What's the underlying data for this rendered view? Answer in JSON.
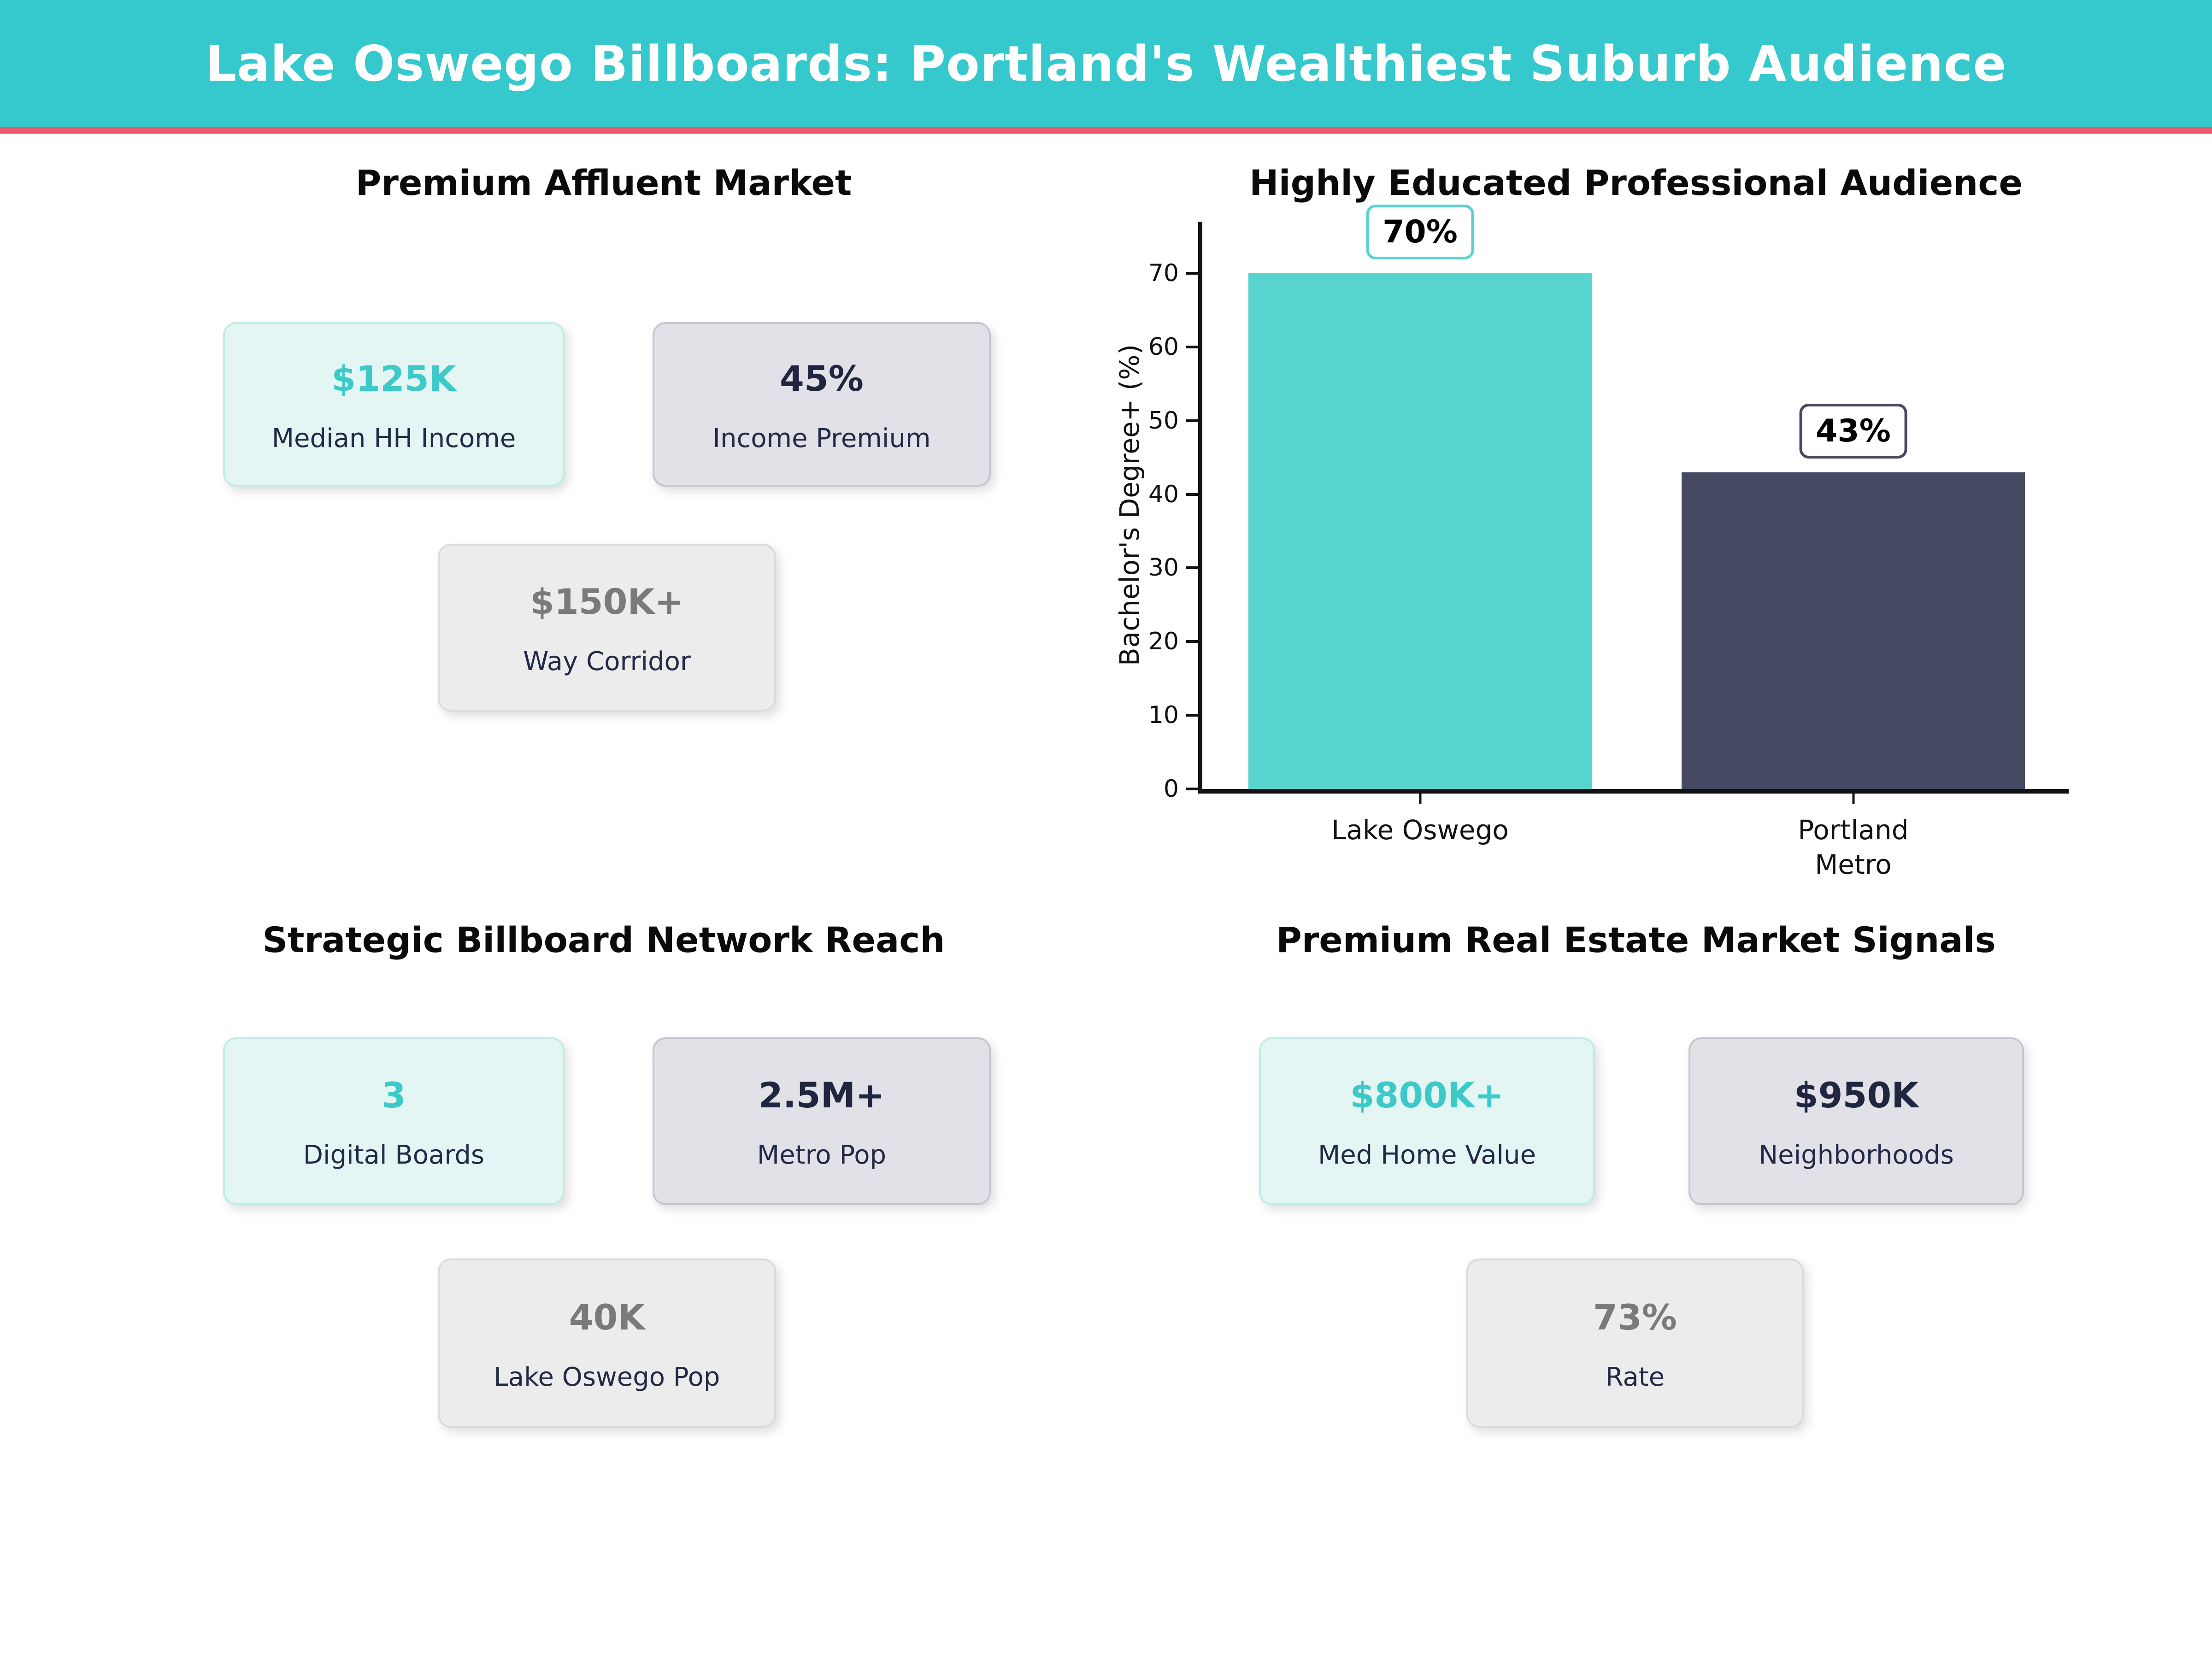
{
  "header": {
    "title": "Lake Oswego Billboards: Portland's Wealthiest Suburb Audience"
  },
  "colors": {
    "header_bg": "#35C8CD",
    "divider_pink": "#E8596E",
    "teal_accent": "#3EC9C9",
    "navy": "#20263F",
    "gray": "#7A7A7A",
    "bar_teal": "#58D4D0",
    "bar_navy": "#454A62"
  },
  "sections": {
    "affluent": {
      "title": "Premium Affluent Market",
      "cards": [
        {
          "value": "$125K",
          "label": "Median HH Income",
          "variant": "mint"
        },
        {
          "value": "45%",
          "label": "Income Premium",
          "variant": "gray"
        },
        {
          "value": "$150K+",
          "label": "Way Corridor",
          "variant": "light"
        }
      ]
    },
    "education": {
      "title": "Highly Educated Professional Audience"
    },
    "network": {
      "title": "Strategic Billboard Network Reach",
      "cards": [
        {
          "value": "3",
          "label": "Digital Boards",
          "variant": "mint"
        },
        {
          "value": "2.5M+",
          "label": "Metro Pop",
          "variant": "gray"
        },
        {
          "value": "40K",
          "label": "Lake Oswego Pop",
          "variant": "light"
        }
      ]
    },
    "realestate": {
      "title": "Premium Real Estate Market Signals",
      "cards": [
        {
          "value": "$800K+",
          "label": "Med Home Value",
          "variant": "mint"
        },
        {
          "value": "$950K",
          "label": "Neighborhoods",
          "variant": "gray"
        },
        {
          "value": "73%",
          "label": "Rate",
          "variant": "light"
        }
      ]
    }
  },
  "chart_data": {
    "type": "bar",
    "title": "Highly Educated Professional Audience",
    "categories": [
      "Lake Oswego",
      "Portland\nMetro"
    ],
    "values": [
      70,
      43
    ],
    "value_labels": [
      "70%",
      "43%"
    ],
    "bar_colors": [
      "#58D4D0",
      "#454A62"
    ],
    "xlabel": "",
    "ylabel": "Bachelor's Degree+ (%)",
    "ylim": [
      0,
      77
    ],
    "yticks": [
      0,
      10,
      20,
      30,
      40,
      50,
      60,
      70
    ],
    "grid": false,
    "legend": "none"
  }
}
